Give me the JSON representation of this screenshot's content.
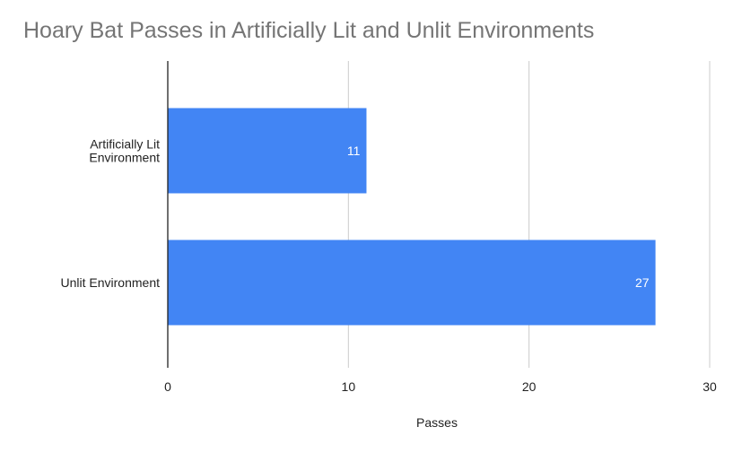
{
  "chart_data": {
    "type": "bar",
    "orientation": "horizontal",
    "title": "Hoary Bat Passes in Artificially Lit and Unlit Environments",
    "categories": [
      [
        "Artificially Lit",
        "Environment"
      ],
      [
        "Unlit Environment"
      ]
    ],
    "values": [
      11,
      27
    ],
    "data_labels": [
      "11",
      "27"
    ],
    "xlabel": "Passes",
    "ylabel": "",
    "xlim": [
      0,
      30
    ],
    "xticks": [
      0,
      10,
      20,
      30
    ],
    "xtick_labels": [
      "0",
      "10",
      "20",
      "30"
    ],
    "grid": "vertical",
    "legend": "none",
    "bar_color": "#4285F4",
    "grid_color": "#cccccc",
    "axis_color": "#222222",
    "title_color": "#757575"
  }
}
